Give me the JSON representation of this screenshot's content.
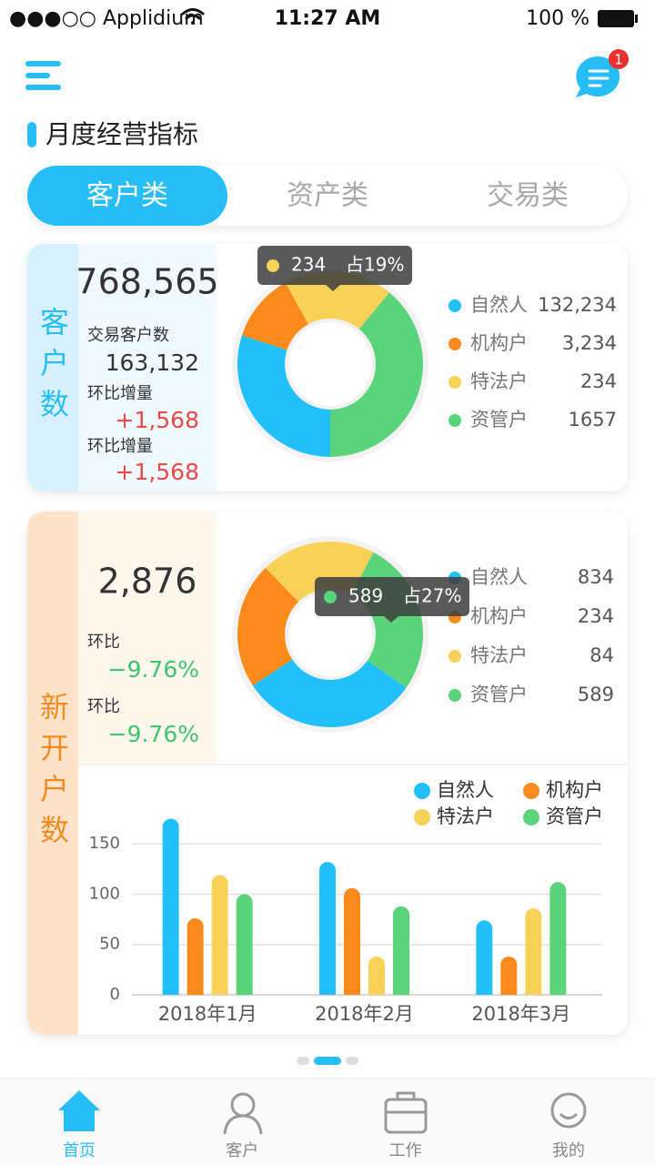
{
  "status_bar": {
    "carrier": "●●●○○ Applidium",
    "time": "11:27 AM",
    "battery": "100 %"
  },
  "header": {
    "badge": 1,
    "title": "月度经营指标"
  },
  "tabs": {
    "items": [
      "客户类",
      "资产类",
      "交易类"
    ],
    "active": 0
  },
  "cards": [
    {
      "label": "客户数",
      "accent": "#27bdf7",
      "strip": "#d6f1fd",
      "panel": "#f0f9fe",
      "total": "768,565",
      "metrics": [
        {
          "label": "交易客户数",
          "value": "163,132",
          "color": "#333333"
        },
        {
          "label": "环比增量",
          "value": "+1,568",
          "color": "#e84a4a"
        },
        {
          "label": "环比增量",
          "value": "+1,568",
          "color": "#e84a4a"
        }
      ],
      "donut": {
        "type": "pie",
        "values": [
          30,
          12,
          19,
          39
        ],
        "tooltip": {
          "segment": 2,
          "value": "234",
          "share": "占19%"
        }
      },
      "legend": [
        {
          "name": "自然人",
          "color": "#22c0fb",
          "value": "132,234"
        },
        {
          "name": "机构户",
          "color": "#f98a1b",
          "value": "3,234"
        },
        {
          "name": "特法户",
          "color": "#f8d158",
          "value": "234"
        },
        {
          "name": "资管户",
          "color": "#5ad37a",
          "value": "1657"
        }
      ]
    },
    {
      "label": "新开户数",
      "accent": "#f58b1f",
      "strip": "#fde3ca",
      "panel": "#fff6ec",
      "total": "2,876",
      "metrics": [
        {
          "label": "环比",
          "value": "−9.76%",
          "color": "#3cc46e"
        },
        {
          "label": "环比",
          "value": "−9.76%",
          "color": "#3cc46e"
        }
      ],
      "donut": {
        "type": "pie",
        "values": [
          31,
          22,
          20,
          27
        ],
        "tooltip": {
          "segment": 3,
          "value": "589",
          "share": "占27%"
        }
      },
      "legend": [
        {
          "name": "自然人",
          "color": "#22c0fb",
          "value": "834"
        },
        {
          "name": "机构户",
          "color": "#f98a1b",
          "value": "234"
        },
        {
          "name": "特法户",
          "color": "#f8d158",
          "value": "84"
        },
        {
          "name": "资管户",
          "color": "#5ad37a",
          "value": "589"
        }
      ],
      "bar_chart": {
        "type": "bar",
        "categories": [
          "2018年1月",
          "2018年2月",
          "2018年3月"
        ],
        "series": [
          {
            "name": "自然人",
            "color": "#22c0fb",
            "values": [
              175,
              132,
              74
            ]
          },
          {
            "name": "机构户",
            "color": "#f98a1b",
            "values": [
              76,
              106,
              38
            ]
          },
          {
            "name": "特法户",
            "color": "#f8d158",
            "values": [
              119,
              38,
              86
            ]
          },
          {
            "name": "资管户",
            "color": "#5ad37a",
            "values": [
              100,
              88,
              112
            ]
          }
        ],
        "ylim": [
          0,
          180
        ],
        "yticks": [
          0,
          50,
          100,
          150
        ],
        "grid": true
      }
    }
  ],
  "pager": {
    "pages": 3,
    "active": 1
  },
  "nav": {
    "items": [
      "首页",
      "客户",
      "工作",
      "我的"
    ],
    "active": 0
  }
}
